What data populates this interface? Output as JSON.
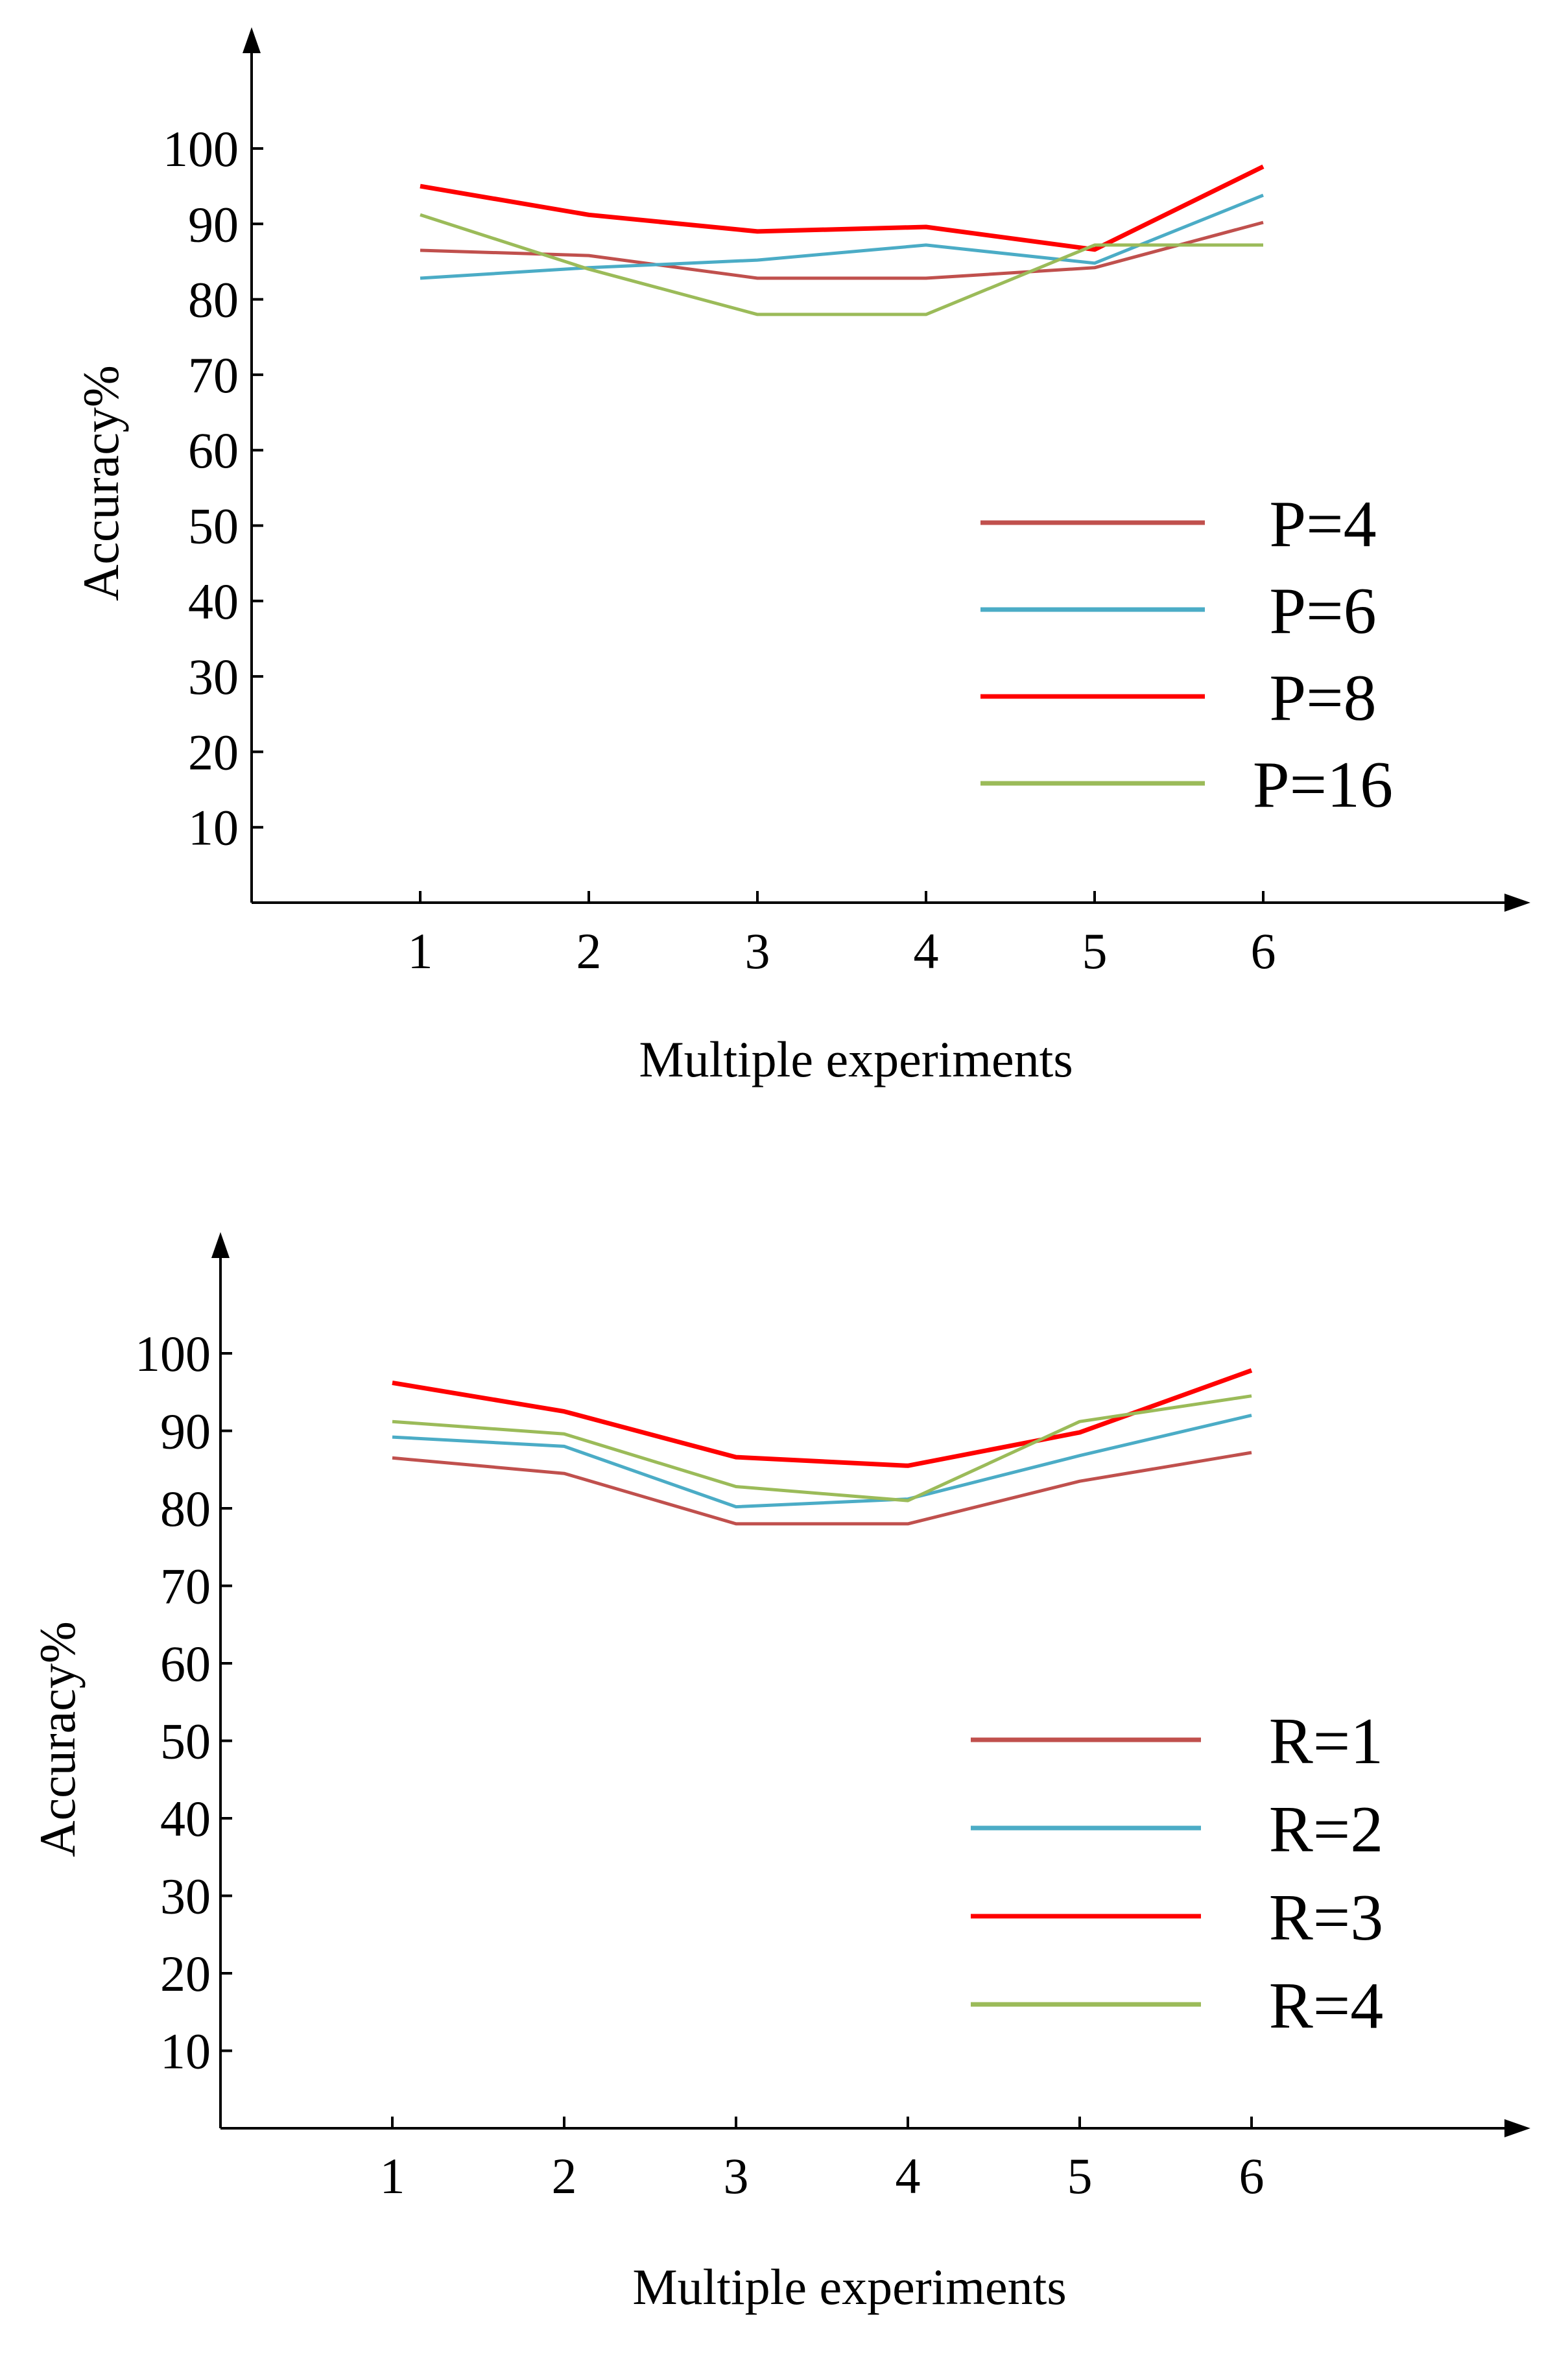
{
  "colors": {
    "axis": "#000000",
    "text": "#000000",
    "background": "#ffffff"
  },
  "chart_data": [
    {
      "type": "line",
      "title": "",
      "xlabel": "Multiple experiments",
      "ylabel": "Accuracy%",
      "xlim": [
        0,
        7.5
      ],
      "ylim": [
        0,
        110
      ],
      "grid": false,
      "legend_position": "bottom-right",
      "x": [
        1,
        2,
        3,
        4,
        5,
        6
      ],
      "xticks": [
        "1",
        "2",
        "3",
        "4",
        "5",
        "6"
      ],
      "yticks": [
        "10",
        "20",
        "30",
        "40",
        "50",
        "60",
        "70",
        "80",
        "90",
        "100"
      ],
      "series": [
        {
          "name": "P=4",
          "color": "#c0504d",
          "values": [
            86.5,
            85.8,
            82.8,
            82.8,
            84.2,
            90.2
          ]
        },
        {
          "name": "P=6",
          "color": "#4bacc6",
          "values": [
            82.8,
            84.2,
            85.2,
            87.2,
            84.8,
            93.8
          ]
        },
        {
          "name": "P=8",
          "color": "#ff0000",
          "values": [
            95.0,
            91.2,
            89.0,
            89.6,
            86.6,
            97.6
          ]
        },
        {
          "name": "P=16",
          "color": "#9bbb59",
          "values": [
            91.2,
            84.0,
            78.0,
            78.0,
            87.2,
            87.2
          ]
        }
      ]
    },
    {
      "type": "line",
      "title": "",
      "xlabel": "Multiple experiments",
      "ylabel": "Accuracy%",
      "xlim": [
        0,
        7.5
      ],
      "ylim": [
        0,
        110
      ],
      "grid": false,
      "legend_position": "bottom-right",
      "x": [
        1,
        2,
        3,
        4,
        5,
        6
      ],
      "xticks": [
        "1",
        "2",
        "3",
        "4",
        "5",
        "6"
      ],
      "yticks": [
        "10",
        "20",
        "30",
        "40",
        "50",
        "60",
        "70",
        "80",
        "90",
        "100"
      ],
      "series": [
        {
          "name": "R=1",
          "color": "#c0504d",
          "values": [
            86.5,
            84.5,
            78.0,
            78.0,
            83.5,
            87.2
          ]
        },
        {
          "name": "R=2",
          "color": "#4bacc6",
          "values": [
            89.2,
            88.0,
            80.2,
            81.2,
            86.8,
            92.0
          ]
        },
        {
          "name": "R=3",
          "color": "#ff0000",
          "values": [
            96.2,
            92.5,
            86.6,
            85.5,
            89.8,
            97.8
          ]
        },
        {
          "name": "R=4",
          "color": "#9bbb59",
          "values": [
            91.2,
            89.6,
            82.8,
            81.0,
            91.2,
            94.5
          ]
        }
      ]
    }
  ]
}
